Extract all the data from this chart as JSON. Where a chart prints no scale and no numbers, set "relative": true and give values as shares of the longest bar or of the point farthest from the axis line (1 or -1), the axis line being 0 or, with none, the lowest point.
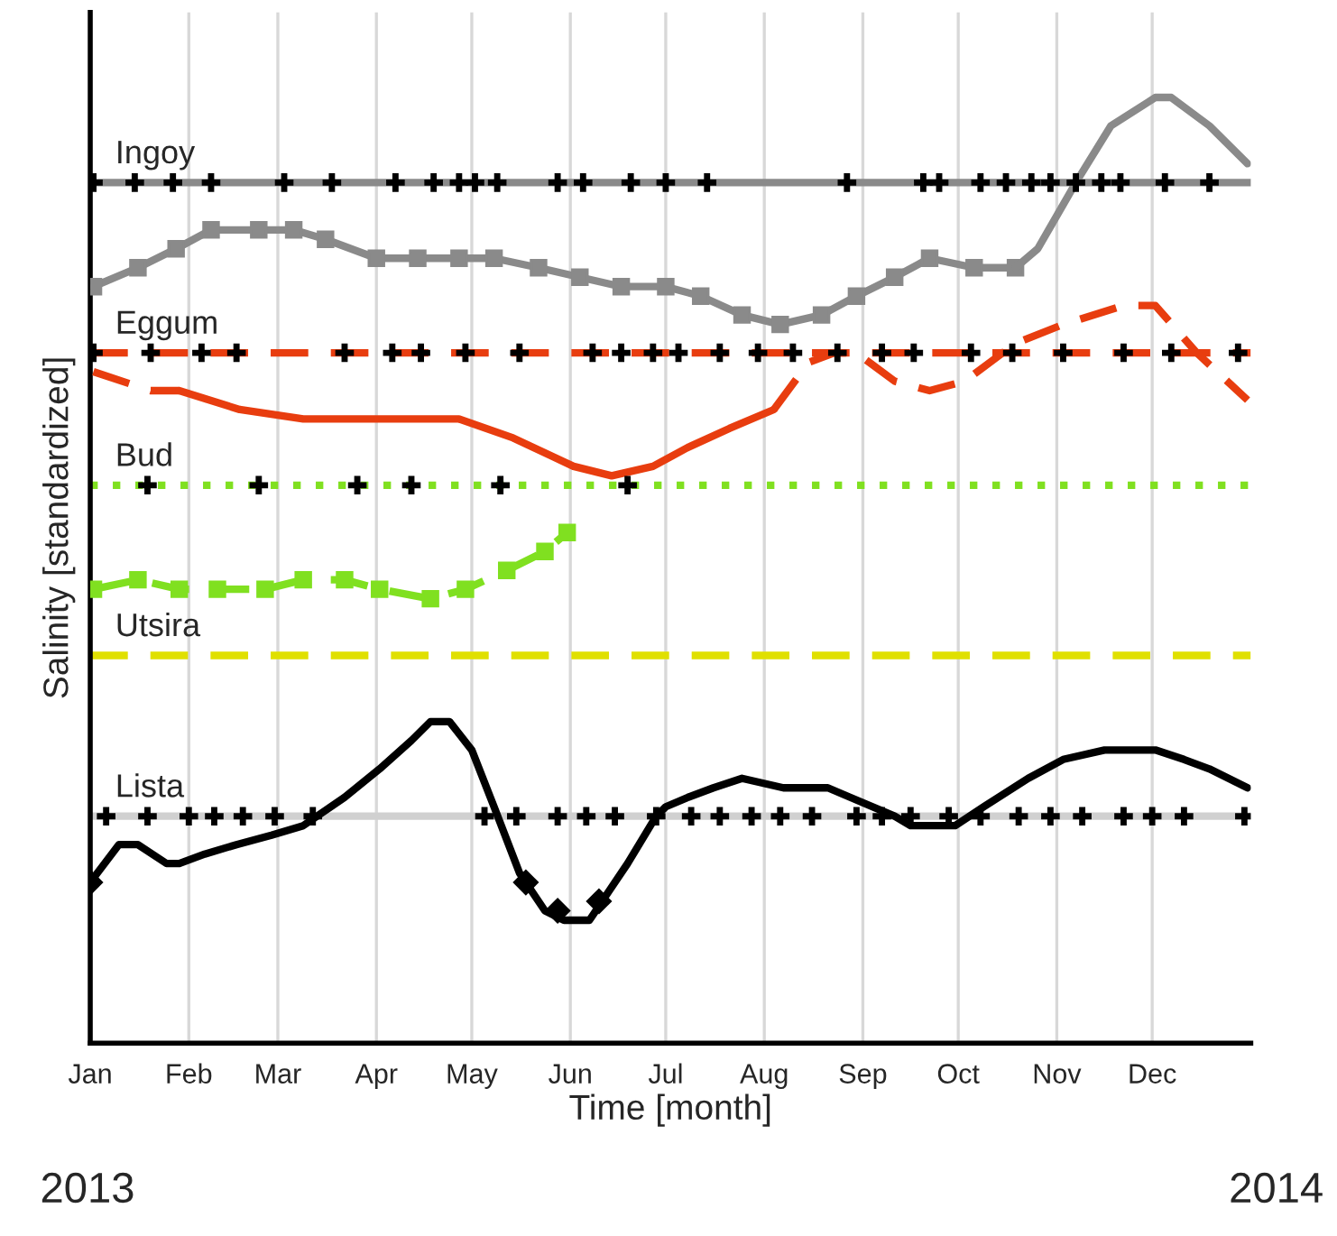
{
  "chart_data": {
    "type": "line",
    "relative": true,
    "xlabel": "Time [month]",
    "ylabel": "Salinity [standardized]",
    "grid": "x",
    "legend": false,
    "xlim": [
      "2013-01-01",
      "2014-01-01"
    ],
    "xticks": [
      {
        "value": "2013-01-01",
        "label": "Jan"
      },
      {
        "value": "2013-02-01",
        "label": "Feb"
      },
      {
        "value": "2013-03-01",
        "label": "Mar"
      },
      {
        "value": "2013-04-01",
        "label": "Apr"
      },
      {
        "value": "2013-05-01",
        "label": "May"
      },
      {
        "value": "2013-06-01",
        "label": "Jun"
      },
      {
        "value": "2013-07-01",
        "label": "Jul"
      },
      {
        "value": "2013-08-01",
        "label": "Aug"
      },
      {
        "value": "2013-09-01",
        "label": "Sep"
      },
      {
        "value": "2013-10-01",
        "label": "Oct"
      },
      {
        "value": "2013-11-01",
        "label": "Nov"
      },
      {
        "value": "2013-12-01",
        "label": "Dec"
      }
    ],
    "tick_labels": "x",
    "annotations": [
      "2013",
      "2014"
    ],
    "ref_lines": [
      {
        "axis": "y",
        "value": 0.91,
        "label": "Ingoy",
        "color": "#8a8a8a",
        "line_style": "solid"
      },
      {
        "axis": "y",
        "value": 0.73,
        "label": "Eggum",
        "color": "#e83d0f",
        "line_style": "dashed"
      },
      {
        "axis": "y",
        "value": 0.59,
        "label": "Bud",
        "color": "#80e020",
        "line_style": "dotted"
      },
      {
        "axis": "y",
        "value": 0.41,
        "label": "Utsira",
        "color": "#e0e000",
        "line_style": "dashed"
      },
      {
        "axis": "y",
        "value": 0.24,
        "label": "Lista",
        "color": "#d0d0d0",
        "line_style": "solid"
      }
    ],
    "series": [
      {
        "color": "#8a8a8a",
        "marker": "square",
        "line_style": "solid",
        "x": [
          "2013-01-02",
          "2013-01-16",
          "2013-01-28",
          "2013-02-08",
          "2013-02-23",
          "2013-03-06",
          "2013-03-16",
          "2013-04-01",
          "2013-04-14",
          "2013-04-27",
          "2013-05-08",
          "2013-05-22",
          "2013-06-04",
          "2013-06-17",
          "2013-07-01",
          "2013-07-12",
          "2013-07-25",
          "2013-08-06",
          "2013-08-19",
          "2013-08-30",
          "2013-09-11",
          "2013-09-22",
          "2013-10-06",
          "2013-10-19"
        ],
        "values": [
          0.8,
          0.82,
          0.84,
          0.86,
          0.86,
          0.86,
          0.85,
          0.83,
          0.83,
          0.83,
          0.83,
          0.82,
          0.81,
          0.8,
          0.8,
          0.79,
          0.77,
          0.76,
          0.77,
          0.79,
          0.81,
          0.83,
          0.82,
          0.82
        ]
      },
      {
        "color": "#8a8a8a",
        "marker": "none",
        "line_style": "solid",
        "x": [
          "2013-10-19",
          "2013-10-26",
          "2013-11-07",
          "2013-11-18",
          "2013-12-02",
          "2013-12-07",
          "2013-12-19",
          "2013-12-31"
        ],
        "values": [
          0.82,
          0.84,
          0.91,
          0.97,
          1.0,
          1.0,
          0.97,
          0.93
        ]
      },
      {
        "color": "#e83d0f",
        "marker": "none",
        "line_style": "dashed",
        "x": [
          "2013-01-02",
          "2013-01-20",
          "2013-01-29"
        ],
        "values": [
          0.71,
          0.69,
          0.69
        ]
      },
      {
        "color": "#e83d0f",
        "marker": "none",
        "line_style": "solid",
        "x": [
          "2013-01-29",
          "2013-02-17",
          "2013-03-09",
          "2013-03-28",
          "2013-04-15",
          "2013-04-27",
          "2013-05-14",
          "2013-06-02",
          "2013-06-14",
          "2013-06-27",
          "2013-07-08",
          "2013-07-21",
          "2013-08-04"
        ],
        "values": [
          0.69,
          0.67,
          0.66,
          0.66,
          0.66,
          0.66,
          0.64,
          0.61,
          0.6,
          0.61,
          0.63,
          0.65,
          0.67
        ]
      },
      {
        "color": "#e83d0f",
        "marker": "none",
        "line_style": "dashed",
        "x": [
          "2013-08-04",
          "2013-08-15",
          "2013-08-23",
          "2013-08-30",
          "2013-09-11",
          "2013-09-22",
          "2013-10-03",
          "2013-10-19",
          "2013-11-03",
          "2013-11-22",
          "2013-12-02",
          "2013-12-15",
          "2013-12-31"
        ],
        "values": [
          0.67,
          0.72,
          0.73,
          0.73,
          0.7,
          0.69,
          0.7,
          0.74,
          0.76,
          0.78,
          0.78,
          0.73,
          0.68
        ]
      },
      {
        "color": "#80e020",
        "marker": "square",
        "line_style": "dashed",
        "x": [
          "2013-01-02",
          "2013-01-16",
          "2013-01-29",
          "2013-02-10",
          "2013-02-25",
          "2013-03-09",
          "2013-03-22",
          "2013-04-02",
          "2013-04-18",
          "2013-04-29",
          "2013-05-12",
          "2013-05-24",
          "2013-05-31"
        ],
        "values": [
          0.48,
          0.49,
          0.48,
          0.48,
          0.48,
          0.49,
          0.49,
          0.48,
          0.47,
          0.48,
          0.5,
          0.52,
          0.54
        ]
      },
      {
        "color": "#000000",
        "marker": "none",
        "line_style": "solid",
        "x": [
          "2013-01-01",
          "2013-01-10",
          "2013-01-16",
          "2013-01-25",
          "2013-01-29",
          "2013-02-06",
          "2013-02-16",
          "2013-02-27",
          "2013-03-09",
          "2013-03-22",
          "2013-04-02",
          "2013-04-12",
          "2013-04-18",
          "2013-04-24",
          "2013-05-01",
          "2013-05-08",
          "2013-05-16",
          "2013-05-24",
          "2013-05-30",
          "2013-06-07",
          "2013-06-11",
          "2013-06-19",
          "2013-06-28",
          "2013-07-01",
          "2013-07-08",
          "2013-07-16",
          "2013-07-25",
          "2013-08-07",
          "2013-08-21",
          "2013-08-28",
          "2013-09-11",
          "2013-09-16",
          "2013-09-30",
          "2013-10-09",
          "2013-10-23",
          "2013-11-03",
          "2013-11-16",
          "2013-11-22",
          "2013-12-02",
          "2013-12-11",
          "2013-12-19",
          "2013-12-31"
        ],
        "values": [
          0.17,
          0.21,
          0.21,
          0.19,
          0.19,
          0.2,
          0.21,
          0.22,
          0.23,
          0.26,
          0.29,
          0.32,
          0.34,
          0.34,
          0.31,
          0.25,
          0.18,
          0.14,
          0.13,
          0.13,
          0.15,
          0.19,
          0.24,
          0.25,
          0.26,
          0.27,
          0.28,
          0.27,
          0.27,
          0.26,
          0.24,
          0.23,
          0.23,
          0.25,
          0.28,
          0.3,
          0.31,
          0.31,
          0.31,
          0.3,
          0.29,
          0.27
        ]
      },
      {
        "type": "scatter",
        "color": "#000000",
        "marker": "diamond",
        "x": [
          "2013-01-01",
          "2013-05-18",
          "2013-05-28",
          "2013-06-10"
        ],
        "values": [
          0.17,
          0.17,
          0.14,
          0.15
        ]
      },
      {
        "type": "scatter",
        "color": "#000000",
        "marker": "cross",
        "x": [
          "2013-01-02",
          "2013-01-15",
          "2013-01-27",
          "2013-02-08",
          "2013-03-03",
          "2013-03-18",
          "2013-04-07",
          "2013-04-19",
          "2013-04-27",
          "2013-05-02",
          "2013-05-09",
          "2013-05-28",
          "2013-06-05",
          "2013-06-20",
          "2013-07-01",
          "2013-07-14",
          "2013-08-27",
          "2013-09-20",
          "2013-09-25",
          "2013-10-08",
          "2013-10-16",
          "2013-10-24",
          "2013-10-30",
          "2013-11-07",
          "2013-11-15",
          "2013-11-21",
          "2013-12-05",
          "2013-12-19"
        ],
        "values": [
          0.91,
          0.91,
          0.91,
          0.91,
          0.91,
          0.91,
          0.91,
          0.91,
          0.91,
          0.91,
          0.91,
          0.91,
          0.91,
          0.91,
          0.91,
          0.91,
          0.91,
          0.91,
          0.91,
          0.91,
          0.91,
          0.91,
          0.91,
          0.91,
          0.91,
          0.91,
          0.91,
          0.91
        ]
      },
      {
        "type": "scatter",
        "color": "#000000",
        "marker": "cross",
        "x": [
          "2013-01-02",
          "2013-01-20",
          "2013-02-05",
          "2013-02-16",
          "2013-03-22",
          "2013-04-06",
          "2013-04-15",
          "2013-04-29",
          "2013-05-16",
          "2013-06-08",
          "2013-06-17",
          "2013-06-27",
          "2013-07-05",
          "2013-07-18",
          "2013-07-30",
          "2013-08-10",
          "2013-08-24",
          "2013-09-07",
          "2013-09-17",
          "2013-10-05",
          "2013-10-18",
          "2013-11-03",
          "2013-11-22",
          "2013-12-07",
          "2013-12-28"
        ],
        "values": [
          0.73,
          0.73,
          0.73,
          0.73,
          0.73,
          0.73,
          0.73,
          0.73,
          0.73,
          0.73,
          0.73,
          0.73,
          0.73,
          0.73,
          0.73,
          0.73,
          0.73,
          0.73,
          0.73,
          0.73,
          0.73,
          0.73,
          0.73,
          0.73,
          0.73
        ]
      },
      {
        "type": "scatter",
        "color": "#000000",
        "marker": "cross",
        "x": [
          "2013-01-19",
          "2013-02-23",
          "2013-03-26",
          "2013-04-12",
          "2013-05-10",
          "2013-06-19"
        ],
        "values": [
          0.59,
          0.59,
          0.59,
          0.59,
          0.59,
          0.59
        ]
      },
      {
        "type": "scatter",
        "color": "#000000",
        "marker": "cross",
        "x": [
          "2013-01-06",
          "2013-01-19",
          "2013-02-01",
          "2013-02-09",
          "2013-02-18",
          "2013-02-28",
          "2013-03-12",
          "2013-05-05",
          "2013-05-15",
          "2013-05-28",
          "2013-06-06",
          "2013-06-15",
          "2013-06-28",
          "2013-07-09",
          "2013-07-18",
          "2013-07-28",
          "2013-08-06",
          "2013-08-16",
          "2013-08-30",
          "2013-09-07",
          "2013-09-16",
          "2013-09-28",
          "2013-10-08",
          "2013-10-20",
          "2013-10-30",
          "2013-11-09",
          "2013-11-22",
          "2013-12-01",
          "2013-12-11",
          "2013-12-30"
        ],
        "values": [
          0.24,
          0.24,
          0.24,
          0.24,
          0.24,
          0.24,
          0.24,
          0.24,
          0.24,
          0.24,
          0.24,
          0.24,
          0.24,
          0.24,
          0.24,
          0.24,
          0.24,
          0.24,
          0.24,
          0.24,
          0.24,
          0.24,
          0.24,
          0.24,
          0.24,
          0.24,
          0.24,
          0.24,
          0.24,
          0.24
        ]
      }
    ]
  }
}
